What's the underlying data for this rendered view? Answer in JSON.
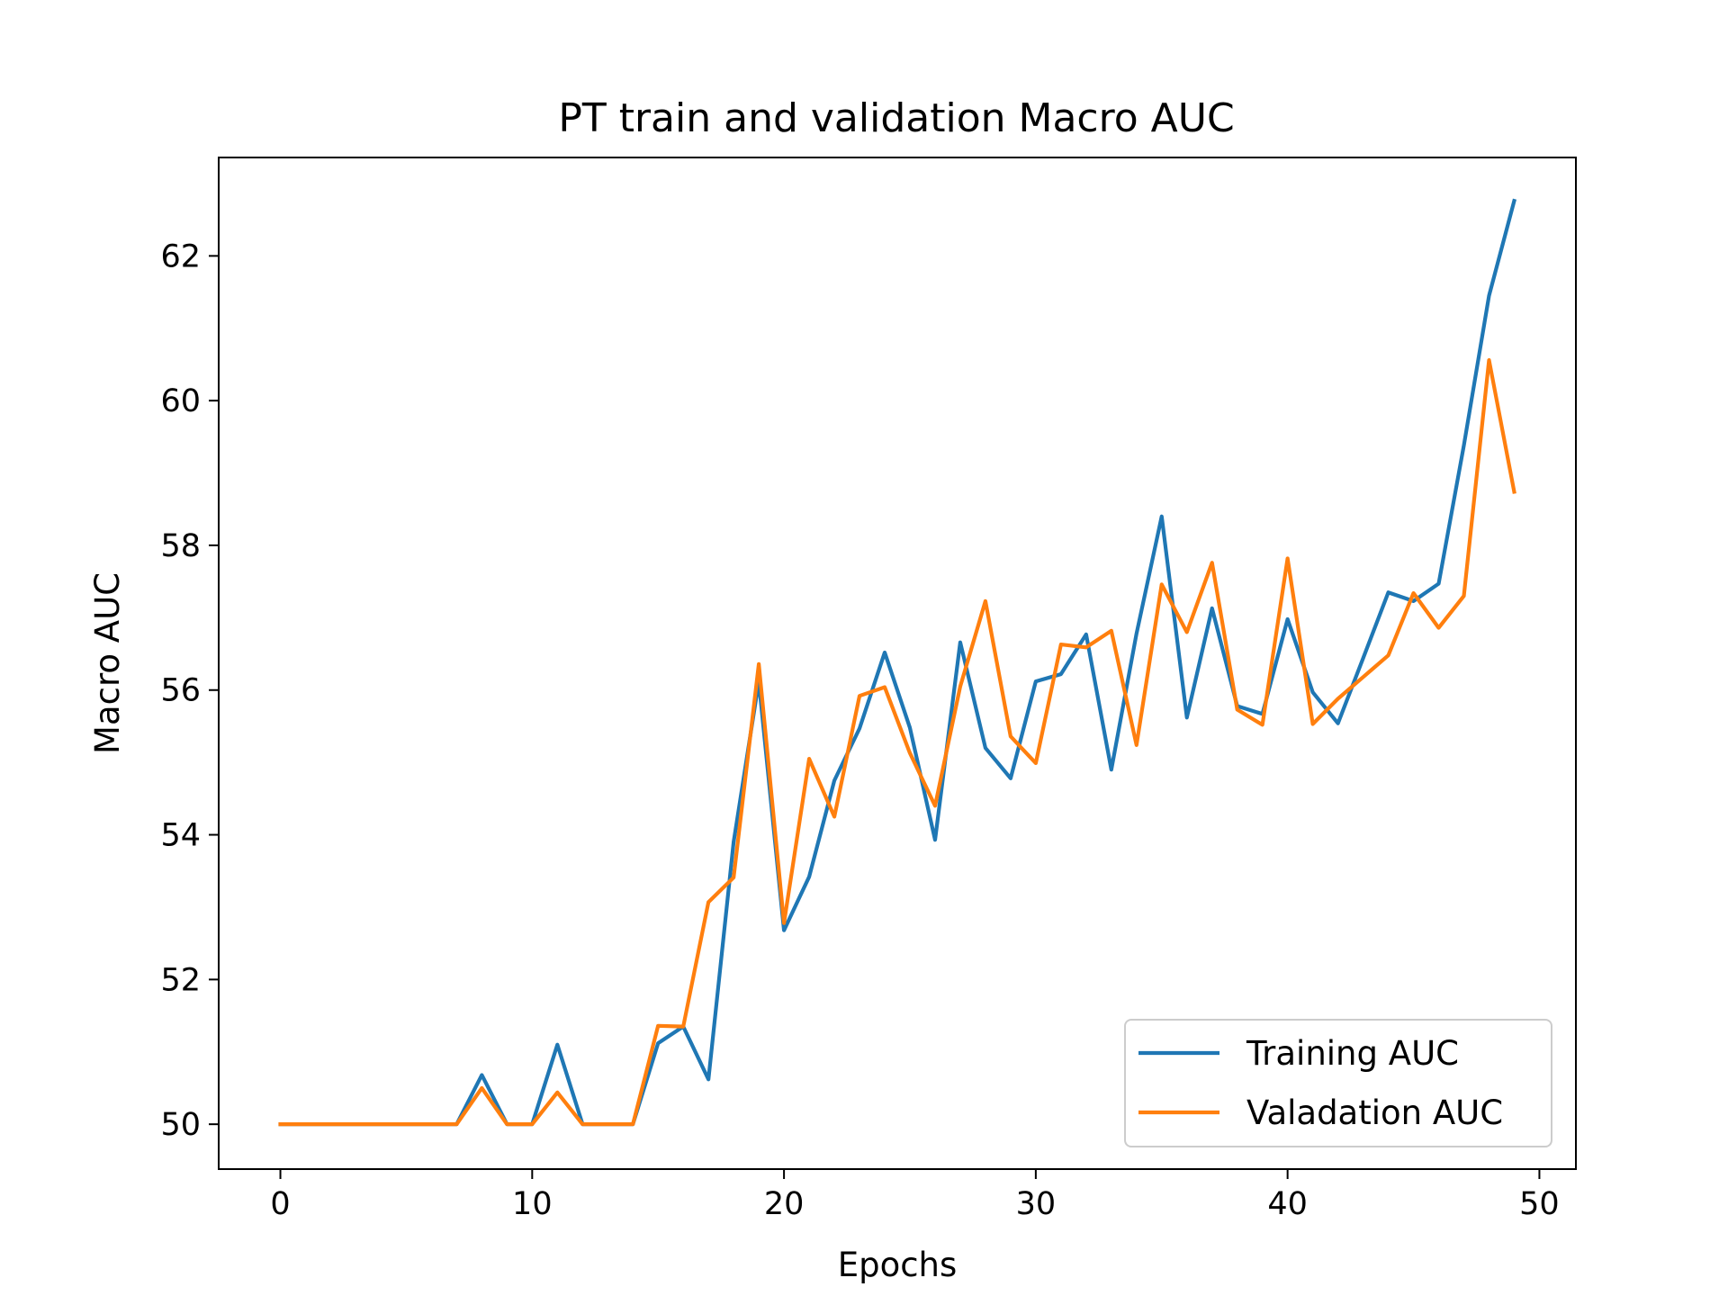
{
  "chart_data": {
    "type": "line",
    "title": "PT train and validation Macro AUC",
    "xlabel": "Epochs",
    "ylabel": "Macro AUC",
    "xlim": [
      -2.45,
      51.45
    ],
    "ylim": [
      49.38,
      63.36
    ],
    "xticks": [
      0,
      10,
      20,
      30,
      40,
      50
    ],
    "yticks": [
      50,
      52,
      54,
      56,
      58,
      60,
      62
    ],
    "grid": false,
    "legend_position": "lower right",
    "x": [
      0,
      1,
      2,
      3,
      4,
      5,
      6,
      7,
      8,
      9,
      10,
      11,
      12,
      13,
      14,
      15,
      16,
      17,
      18,
      19,
      20,
      21,
      22,
      23,
      24,
      25,
      26,
      27,
      28,
      29,
      30,
      31,
      32,
      33,
      34,
      35,
      36,
      37,
      38,
      39,
      40,
      41,
      42,
      43,
      44,
      45,
      46,
      47,
      48,
      49
    ],
    "series": [
      {
        "name": "Training AUC",
        "color": "#1f77b4",
        "values": [
          50.0,
          50.0,
          50.0,
          50.0,
          50.0,
          50.0,
          50.0,
          50.0,
          50.68,
          50.0,
          50.0,
          51.1,
          50.0,
          50.0,
          50.0,
          51.12,
          51.35,
          50.62,
          53.9,
          56.12,
          52.68,
          53.42,
          54.75,
          55.47,
          56.52,
          55.48,
          53.93,
          56.66,
          55.2,
          54.78,
          56.12,
          56.22,
          56.77,
          54.9,
          56.78,
          58.4,
          55.62,
          57.13,
          55.78,
          55.67,
          56.98,
          55.97,
          55.54,
          56.44,
          57.35,
          57.23,
          57.47,
          59.38,
          61.45,
          62.76
        ]
      },
      {
        "name": "Valadation AUC",
        "color": "#ff7f0e",
        "values": [
          50.0,
          50.0,
          50.0,
          50.0,
          50.0,
          50.0,
          50.0,
          50.0,
          50.5,
          50.0,
          50.0,
          50.44,
          50.0,
          50.0,
          50.0,
          51.36,
          51.35,
          53.07,
          53.41,
          56.36,
          52.78,
          55.05,
          54.25,
          55.92,
          56.04,
          55.13,
          54.4,
          56.05,
          57.23,
          55.36,
          54.99,
          56.63,
          56.59,
          56.82,
          55.24,
          57.46,
          56.8,
          57.76,
          55.73,
          55.52,
          57.82,
          55.53,
          55.88,
          56.18,
          56.48,
          57.34,
          56.86,
          57.3,
          60.56,
          58.74
        ]
      }
    ]
  }
}
